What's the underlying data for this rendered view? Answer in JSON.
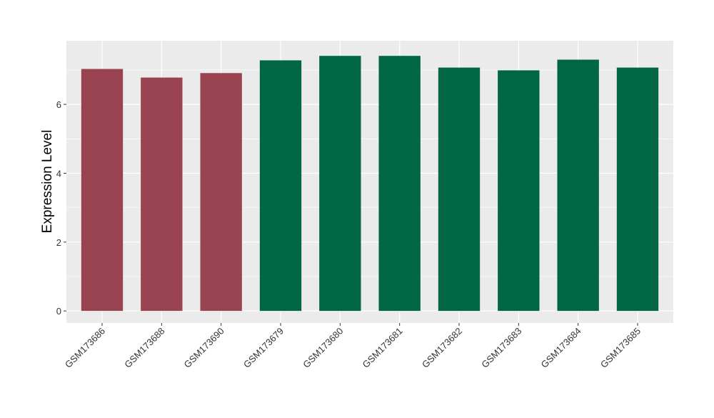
{
  "chart_data": {
    "type": "bar",
    "title": "",
    "xlabel": "",
    "ylabel": "Expression Level",
    "categories": [
      "GSM173686",
      "GSM173688",
      "GSM173690",
      "GSM173679",
      "GSM173680",
      "GSM173681",
      "GSM173682",
      "GSM173683",
      "GSM173684",
      "GSM173685"
    ],
    "values": [
      7.03,
      6.78,
      6.91,
      7.28,
      7.41,
      7.41,
      7.07,
      6.99,
      7.3,
      7.07
    ],
    "bar_colors": [
      "#9a4350",
      "#9a4350",
      "#9a4350",
      "#006644",
      "#006644",
      "#006644",
      "#006644",
      "#006644",
      "#006644",
      "#006644"
    ],
    "ylim": [
      -0.35,
      7.85
    ],
    "yticks": [
      0,
      2,
      4,
      6
    ],
    "grid": true,
    "panel_background": "#ebebeb",
    "grid_color": "#ffffff",
    "legend": "none"
  }
}
